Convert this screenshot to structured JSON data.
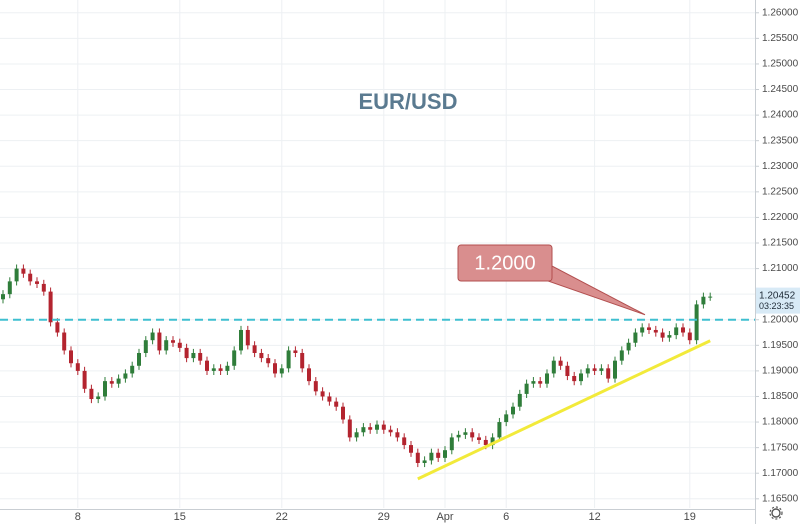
{
  "chart_data": {
    "type": "candlestick",
    "title": "EUR/USD",
    "categories": [
      null,
      null,
      null,
      null,
      null,
      null,
      null,
      null,
      null,
      null,
      null,
      "8",
      null,
      null,
      null,
      null,
      null,
      null,
      null,
      null,
      null,
      null,
      null,
      null,
      null,
      null,
      "15",
      null,
      null,
      null,
      null,
      null,
      null,
      null,
      null,
      null,
      null,
      null,
      null,
      null,
      null,
      "22",
      null,
      null,
      null,
      null,
      null,
      null,
      null,
      null,
      null,
      null,
      null,
      null,
      null,
      null,
      "29",
      null,
      null,
      null,
      null,
      null,
      null,
      null,
      null,
      "Apr",
      null,
      null,
      null,
      null,
      null,
      null,
      null,
      null,
      "6",
      null,
      null,
      null,
      null,
      null,
      null,
      null,
      null,
      null,
      null,
      null,
      null,
      "12",
      null,
      null,
      null,
      null,
      null,
      null,
      null,
      null,
      null,
      null,
      null,
      null,
      null,
      "19",
      null,
      null,
      null
    ],
    "open": [
      1.204,
      1.205,
      1.2075,
      1.21,
      1.209,
      1.2075,
      1.207,
      1.2055,
      1.1995,
      1.1975,
      1.194,
      1.1915,
      1.19,
      1.1865,
      1.1845,
      1.185,
      1.188,
      1.1875,
      1.1885,
      1.1895,
      1.191,
      1.1935,
      1.196,
      1.1975,
      1.194,
      1.196,
      1.1955,
      1.1945,
      1.1925,
      1.1935,
      1.192,
      1.19,
      1.1905,
      1.19,
      1.191,
      1.194,
      1.198,
      1.195,
      1.1935,
      1.1925,
      1.1915,
      1.1895,
      1.1905,
      1.194,
      1.1935,
      1.1905,
      1.188,
      1.186,
      1.185,
      1.184,
      1.183,
      1.1805,
      1.177,
      1.178,
      1.179,
      1.1785,
      1.1795,
      1.1785,
      1.178,
      1.177,
      1.1755,
      1.174,
      1.172,
      1.1725,
      1.174,
      1.173,
      1.1745,
      1.177,
      1.1775,
      1.178,
      1.177,
      1.1765,
      1.1755,
      1.177,
      1.18,
      1.1815,
      1.183,
      1.1855,
      1.1875,
      1.188,
      1.1875,
      1.1895,
      1.192,
      1.191,
      1.189,
      1.188,
      1.1895,
      1.1905,
      1.19,
      1.1905,
      1.1885,
      1.192,
      1.194,
      1.1955,
      1.1975,
      1.1985,
      1.198,
      1.1975,
      1.1965,
      1.197,
      1.1985,
      1.1975,
      1.196,
      1.203,
      1.2045
    ],
    "high": [
      1.2058,
      1.2083,
      1.2108,
      1.2108,
      1.2098,
      1.2083,
      1.2078,
      1.2063,
      1.2003,
      1.1983,
      1.1948,
      1.1923,
      1.1908,
      1.1873,
      1.1858,
      1.1888,
      1.1888,
      1.1893,
      1.1903,
      1.1918,
      1.1943,
      1.1968,
      1.1983,
      1.1983,
      1.1968,
      1.1968,
      1.1963,
      1.1953,
      1.1943,
      1.1943,
      1.1928,
      1.1913,
      1.1913,
      1.1918,
      1.1948,
      1.1988,
      1.1988,
      1.1958,
      1.1943,
      1.1933,
      1.1923,
      1.1913,
      1.1948,
      1.1948,
      1.1943,
      1.1913,
      1.1888,
      1.1868,
      1.1858,
      1.1848,
      1.1838,
      1.1813,
      1.1788,
      1.1798,
      1.1798,
      1.1803,
      1.1803,
      1.1793,
      1.1788,
      1.1778,
      1.1763,
      1.1748,
      1.1733,
      1.1748,
      1.1748,
      1.1753,
      1.1778,
      1.1783,
      1.1788,
      1.1788,
      1.1778,
      1.1773,
      1.1778,
      1.1808,
      1.1823,
      1.1838,
      1.1863,
      1.1883,
      1.1888,
      1.1888,
      1.1903,
      1.1928,
      1.1928,
      1.1918,
      1.1898,
      1.1903,
      1.1913,
      1.1913,
      1.1913,
      1.1913,
      1.1928,
      1.1948,
      1.1963,
      1.1983,
      1.1993,
      1.1993,
      1.1988,
      1.1983,
      1.1978,
      1.1993,
      1.1993,
      1.1983,
      1.2038,
      1.2053,
      1.2053
    ],
    "low": [
      1.2032,
      1.2042,
      1.2067,
      1.2082,
      1.2067,
      1.2062,
      1.2047,
      1.1987,
      1.1967,
      1.1932,
      1.1907,
      1.1892,
      1.1857,
      1.1837,
      1.1837,
      1.1842,
      1.1867,
      1.1867,
      1.1877,
      1.1887,
      1.1902,
      1.1927,
      1.1952,
      1.1932,
      1.1932,
      1.1947,
      1.1937,
      1.1917,
      1.1917,
      1.1912,
      1.1892,
      1.1892,
      1.1892,
      1.1892,
      1.1902,
      1.1932,
      1.1942,
      1.1927,
      1.1917,
      1.1907,
      1.1887,
      1.1887,
      1.1897,
      1.1927,
      1.1897,
      1.1872,
      1.1852,
      1.1842,
      1.1832,
      1.1822,
      1.1797,
      1.1762,
      1.1762,
      1.1772,
      1.1777,
      1.1777,
      1.1777,
      1.1772,
      1.1762,
      1.1747,
      1.1732,
      1.1712,
      1.1712,
      1.1717,
      1.1722,
      1.1722,
      1.1737,
      1.1762,
      1.1767,
      1.1762,
      1.1757,
      1.1747,
      1.1747,
      1.1762,
      1.1792,
      1.1807,
      1.1822,
      1.1847,
      1.1867,
      1.1867,
      1.1867,
      1.1887,
      1.1902,
      1.1882,
      1.1872,
      1.1872,
      1.1887,
      1.1892,
      1.1892,
      1.1877,
      1.1877,
      1.1912,
      1.1932,
      1.1947,
      1.1967,
      1.1972,
      1.1967,
      1.1957,
      1.1957,
      1.1962,
      1.1967,
      1.1952,
      1.1952,
      1.2022,
      1.2037
    ],
    "close": [
      1.205,
      1.2075,
      1.21,
      1.209,
      1.2075,
      1.207,
      1.2055,
      1.1995,
      1.1975,
      1.194,
      1.1915,
      1.19,
      1.1865,
      1.1845,
      1.185,
      1.188,
      1.1875,
      1.1885,
      1.1895,
      1.191,
      1.1935,
      1.196,
      1.1975,
      1.194,
      1.196,
      1.1955,
      1.1945,
      1.1925,
      1.1935,
      1.192,
      1.19,
      1.1905,
      1.19,
      1.191,
      1.194,
      1.198,
      1.195,
      1.1935,
      1.1925,
      1.1915,
      1.1895,
      1.1905,
      1.194,
      1.1935,
      1.1905,
      1.188,
      1.186,
      1.185,
      1.184,
      1.183,
      1.1805,
      1.177,
      1.178,
      1.179,
      1.1785,
      1.1795,
      1.1785,
      1.178,
      1.177,
      1.1755,
      1.174,
      1.172,
      1.1725,
      1.174,
      1.173,
      1.1745,
      1.177,
      1.1775,
      1.178,
      1.177,
      1.1765,
      1.1755,
      1.177,
      1.18,
      1.1815,
      1.183,
      1.1855,
      1.1875,
      1.188,
      1.1875,
      1.1895,
      1.192,
      1.191,
      1.189,
      1.188,
      1.1895,
      1.1905,
      1.19,
      1.1905,
      1.1885,
      1.192,
      1.194,
      1.1955,
      1.1975,
      1.1985,
      1.198,
      1.1975,
      1.1965,
      1.197,
      1.1985,
      1.1975,
      1.196,
      1.203,
      1.2045,
      1.20452
    ],
    "up_color": "#2f7d3a",
    "down_color": "#b3242f",
    "ylim": [
      1.1632,
      1.2625
    ],
    "yticks": [
      {
        "value": 1.165,
        "label": "1.16500"
      },
      {
        "value": 1.17,
        "label": "1.17000"
      },
      {
        "value": 1.175,
        "label": "1.17500"
      },
      {
        "value": 1.18,
        "label": "1.18000"
      },
      {
        "value": 1.185,
        "label": "1.18500"
      },
      {
        "value": 1.19,
        "label": "1.19000"
      },
      {
        "value": 1.195,
        "label": "1.19500"
      },
      {
        "value": 1.2,
        "label": "1.20000"
      },
      {
        "value": 1.205,
        "label": "1.20500"
      },
      {
        "value": 1.21,
        "label": "1.21000"
      },
      {
        "value": 1.215,
        "label": "1.21500"
      },
      {
        "value": 1.22,
        "label": "1.22000"
      },
      {
        "value": 1.225,
        "label": "1.22500"
      },
      {
        "value": 1.23,
        "label": "1.23000"
      },
      {
        "value": 1.235,
        "label": "1.23500"
      },
      {
        "value": 1.24,
        "label": "1.24000"
      },
      {
        "value": 1.245,
        "label": "1.24500"
      },
      {
        "value": 1.25,
        "label": "1.25000"
      },
      {
        "value": 1.255,
        "label": "1.25500"
      },
      {
        "value": 1.26,
        "label": "1.26000"
      }
    ],
    "grid": true,
    "level": {
      "value": 1.2,
      "label": "1.2000",
      "color": "#3fbfd0"
    },
    "trendline": {
      "x": [
        61,
        104
      ],
      "y": [
        1.1689,
        1.1959
      ],
      "color": "#f2ea3a"
    },
    "countdown": "03:23:35"
  }
}
